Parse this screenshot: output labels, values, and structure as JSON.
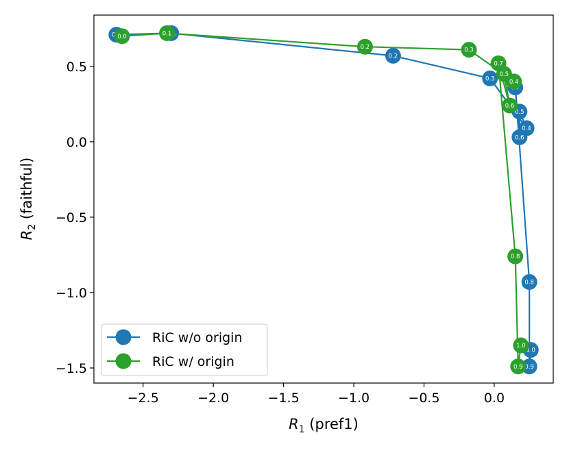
{
  "chart_data": {
    "type": "line",
    "title": "",
    "xlabel": {
      "symbol": "R",
      "sub": "1",
      "text": " (pref1)"
    },
    "ylabel": {
      "symbol": "R",
      "sub": "2",
      "text": " (faithful)"
    },
    "xlim": [
      -2.85,
      0.42
    ],
    "ylim": [
      -1.6,
      0.84
    ],
    "xticks": [
      -2.5,
      -2.0,
      -1.5,
      -1.0,
      -0.5,
      0.0
    ],
    "xtick_labels": [
      "−2.5",
      "−2.0",
      "−1.5",
      "−1.0",
      "−0.5",
      "0.0"
    ],
    "yticks": [
      0.5,
      0.0,
      -0.5,
      -1.0,
      -1.5
    ],
    "ytick_labels": [
      "0.5",
      "0.0",
      "−0.5",
      "−1.0",
      "−1.5"
    ],
    "grid": false,
    "legend": "lower-left",
    "series": [
      {
        "name": "RiC w/o origin",
        "color": "#1f77b4",
        "points": [
          {
            "x": -2.69,
            "y": 0.71,
            "label": "0.0"
          },
          {
            "x": -2.3,
            "y": 0.72,
            "label": "0.1"
          },
          {
            "x": -0.72,
            "y": 0.57,
            "label": "0.2"
          },
          {
            "x": -0.03,
            "y": 0.42,
            "label": "0.3"
          },
          {
            "x": 0.23,
            "y": 0.09,
            "label": "0.4"
          },
          {
            "x": 0.18,
            "y": 0.2,
            "label": "0.5"
          },
          {
            "x": 0.18,
            "y": 0.03,
            "label": "0.6"
          },
          {
            "x": 0.15,
            "y": 0.36,
            "label": "0.7"
          },
          {
            "x": 0.25,
            "y": -0.93,
            "label": "0.8"
          },
          {
            "x": 0.25,
            "y": -1.49,
            "label": "0.9"
          },
          {
            "x": 0.26,
            "y": -1.38,
            "label": "1.0"
          }
        ]
      },
      {
        "name": "RiC w/ origin",
        "color": "#2ca02c",
        "points": [
          {
            "x": -2.65,
            "y": 0.7,
            "label": "0.0"
          },
          {
            "x": -2.33,
            "y": 0.72,
            "label": "0.1"
          },
          {
            "x": -0.92,
            "y": 0.63,
            "label": "0.2"
          },
          {
            "x": -0.18,
            "y": 0.61,
            "label": "0.3"
          },
          {
            "x": 0.14,
            "y": 0.4,
            "label": "0.4"
          },
          {
            "x": 0.07,
            "y": 0.45,
            "label": "0.5"
          },
          {
            "x": 0.11,
            "y": 0.24,
            "label": "0.6"
          },
          {
            "x": 0.03,
            "y": 0.52,
            "label": "0.7"
          },
          {
            "x": 0.15,
            "y": -0.76,
            "label": "0.8"
          },
          {
            "x": 0.17,
            "y": -1.49,
            "label": "0.9"
          },
          {
            "x": 0.19,
            "y": -1.35,
            "label": "1.0"
          }
        ]
      }
    ]
  }
}
